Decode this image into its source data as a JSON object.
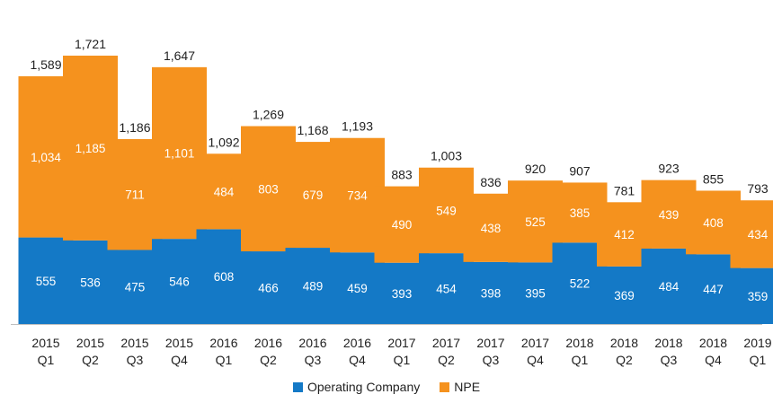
{
  "chart_data": {
    "type": "bar",
    "stacked": true,
    "categories": [
      [
        "2015",
        "Q1"
      ],
      [
        "2015",
        "Q2"
      ],
      [
        "2015",
        "Q3"
      ],
      [
        "2015",
        "Q4"
      ],
      [
        "2016",
        "Q1"
      ],
      [
        "2016",
        "Q2"
      ],
      [
        "2016",
        "Q3"
      ],
      [
        "2016",
        "Q4"
      ],
      [
        "2017",
        "Q1"
      ],
      [
        "2017",
        "Q2"
      ],
      [
        "2017",
        "Q3"
      ],
      [
        "2017",
        "Q4"
      ],
      [
        "2018",
        "Q1"
      ],
      [
        "2018",
        "Q2"
      ],
      [
        "2018",
        "Q3"
      ],
      [
        "2018",
        "Q4"
      ],
      [
        "2019",
        "Q1"
      ]
    ],
    "series": [
      {
        "name": "Operating Company",
        "color": "#1479c6",
        "values": [
          555,
          536,
          475,
          546,
          608,
          466,
          489,
          459,
          393,
          454,
          398,
          395,
          522,
          369,
          484,
          447,
          359
        ]
      },
      {
        "name": "NPE",
        "color": "#f5921e",
        "values": [
          1034,
          1185,
          711,
          1101,
          484,
          803,
          679,
          734,
          490,
          549,
          438,
          525,
          385,
          412,
          439,
          408,
          434
        ]
      }
    ],
    "totals": [
      "1,589",
      "1,721",
      "1,186",
      "1,647",
      "1,092",
      "1,269",
      "1,168",
      "1,193",
      "883",
      "1,003",
      "836",
      "920",
      "907",
      "781",
      "923",
      "855",
      "793"
    ],
    "ylim": [
      0,
      1721
    ],
    "grid": false,
    "legend_position": "bottom-center"
  }
}
